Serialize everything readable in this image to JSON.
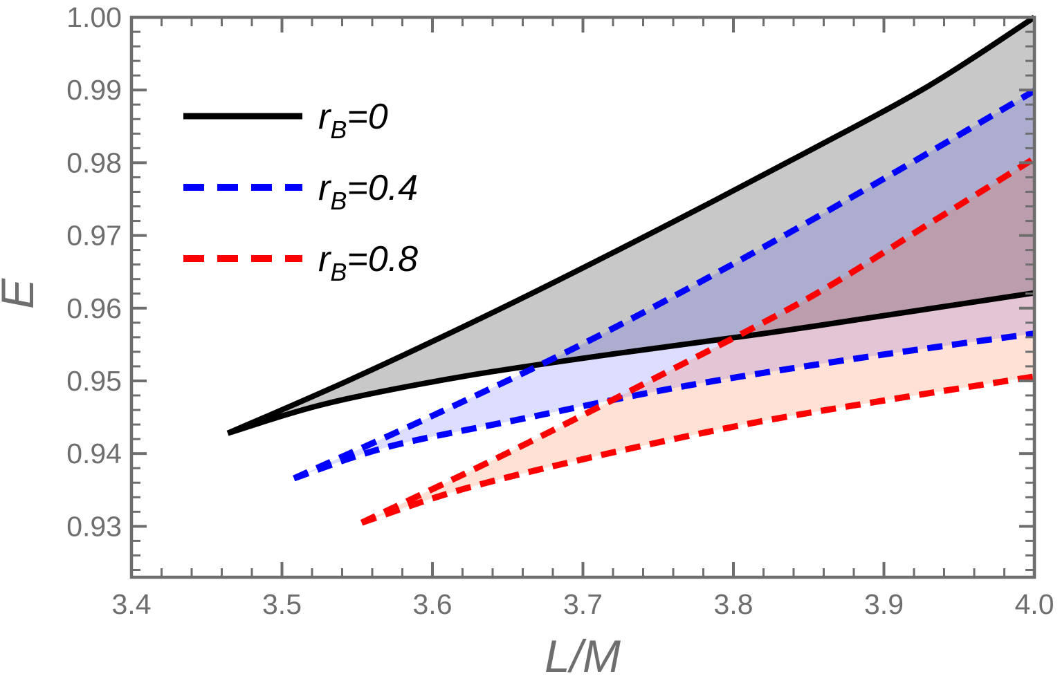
{
  "figure": {
    "background": "#ffffff",
    "frame_color": "#6e6e6e",
    "tick_label_color": "#6e6e6e"
  },
  "chart_data": {
    "type": "area",
    "title": "",
    "xlabel": "L/M",
    "ylabel": "E",
    "xlim": [
      3.4,
      4.0
    ],
    "ylim": [
      0.923,
      1.0
    ],
    "grid": false,
    "frame_ticks": "all-four-sides-inward",
    "x_major_ticks": [
      3.4,
      3.5,
      3.6,
      3.7,
      3.8,
      3.9,
      4.0
    ],
    "x_tick_labels": [
      "3.4",
      "3.5",
      "3.6",
      "3.7",
      "3.8",
      "3.9",
      "4.0"
    ],
    "x_minor_step": 0.02,
    "y_major_ticks": [
      0.93,
      0.94,
      0.95,
      0.96,
      0.97,
      0.98,
      0.99,
      1.0
    ],
    "y_tick_labels": [
      "0.93",
      "0.94",
      "0.95",
      "0.96",
      "0.97",
      "0.98",
      "0.99",
      "1.00"
    ],
    "y_minor_step": 0.002,
    "legend_position": "inside-top-left",
    "series": [
      {
        "id": "rb0",
        "label": "rB=0",
        "color": "#000000",
        "line_style": "solid",
        "fill": "rgba(0,0,0,0.215)",
        "cusp": [
          3.464,
          0.9428
        ],
        "upper": [
          [
            3.464,
            0.9428
          ],
          [
            3.55,
            0.9506
          ],
          [
            3.65,
            0.9604
          ],
          [
            3.75,
            0.9708
          ],
          [
            3.85,
            0.9816
          ],
          [
            3.93,
            0.9906
          ],
          [
            4.0,
            1.0
          ]
        ],
        "lower": [
          [
            3.464,
            0.9428
          ],
          [
            3.53,
            0.9469
          ],
          [
            3.62,
            0.9506
          ],
          [
            3.72,
            0.9537
          ],
          [
            3.82,
            0.9565
          ],
          [
            3.92,
            0.9596
          ],
          [
            4.0,
            0.9621
          ]
        ]
      },
      {
        "id": "rb04",
        "label": "rB=0.4",
        "color": "#0000ff",
        "line_style": "dashed",
        "fill": "rgba(0,0,255,0.135)",
        "cusp": [
          3.508,
          0.9366
        ],
        "upper": [
          [
            3.508,
            0.9366
          ],
          [
            3.6,
            0.9452
          ],
          [
            3.7,
            0.9551
          ],
          [
            3.8,
            0.9661
          ],
          [
            3.9,
            0.9778
          ],
          [
            4.0,
            0.9899
          ]
        ],
        "lower": [
          [
            3.508,
            0.9366
          ],
          [
            3.57,
            0.9409
          ],
          [
            3.66,
            0.9448
          ],
          [
            3.76,
            0.949
          ],
          [
            3.86,
            0.9524
          ],
          [
            3.95,
            0.9551
          ],
          [
            4.0,
            0.9565
          ]
        ]
      },
      {
        "id": "rb08",
        "label": "rB=0.8",
        "color": "#ff0000",
        "line_style": "dashed",
        "fill": "rgba(255,90,20,0.18)",
        "cusp": [
          3.553,
          0.9305
        ],
        "upper": [
          [
            3.553,
            0.9305
          ],
          [
            3.65,
            0.9401
          ],
          [
            3.75,
            0.9506
          ],
          [
            3.85,
            0.9614
          ],
          [
            3.93,
            0.9716
          ],
          [
            4.0,
            0.9806
          ]
        ],
        "lower": [
          [
            3.553,
            0.9305
          ],
          [
            3.62,
            0.9351
          ],
          [
            3.71,
            0.9397
          ],
          [
            3.81,
            0.9441
          ],
          [
            3.9,
            0.9473
          ],
          [
            4.0,
            0.9506
          ]
        ]
      }
    ]
  },
  "legend": {
    "items": [
      {
        "base": "r",
        "sub": "B",
        "rest": "=0",
        "series": "rb0"
      },
      {
        "base": "r",
        "sub": "B",
        "rest": "=0.4",
        "series": "rb04"
      },
      {
        "base": "r",
        "sub": "B",
        "rest": "=0.8",
        "series": "rb08"
      }
    ]
  }
}
